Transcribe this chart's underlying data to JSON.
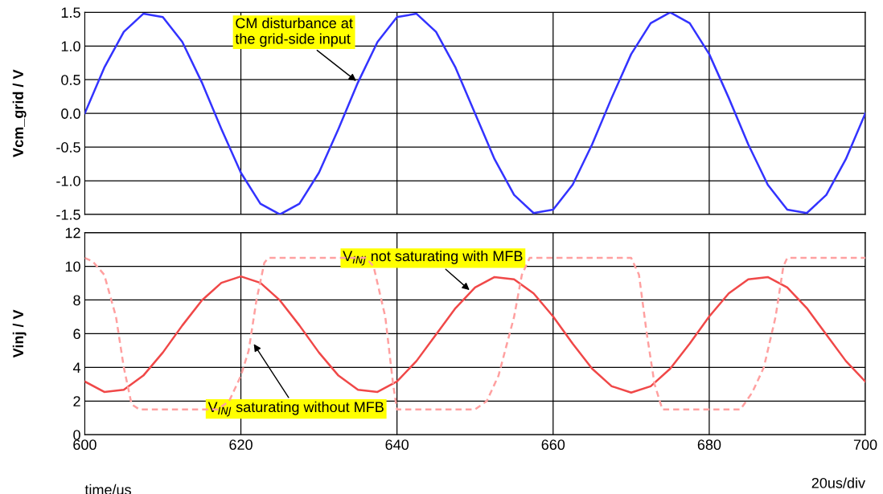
{
  "chart_data": [
    {
      "type": "line",
      "ylabel": "Vcm_grid / V",
      "xlim": [
        600,
        700
      ],
      "xticks": [
        600,
        620,
        640,
        660,
        680,
        700
      ],
      "ylim": [
        -1.5,
        1.5
      ],
      "yticks": [
        {
          "value": -1.5,
          "label": "-1.5"
        },
        {
          "value": -1.0,
          "label": "-1.0"
        },
        {
          "value": -0.5,
          "label": "-0.5"
        },
        {
          "value": 0.0,
          "label": "0.0"
        },
        {
          "value": 0.5,
          "label": "0.5"
        },
        {
          "value": 1.0,
          "label": "1.0"
        },
        {
          "value": 1.5,
          "label": "1.5"
        }
      ],
      "tick_labels": "y",
      "grid": true,
      "legend": false,
      "series": [
        {
          "color": "#3333ff",
          "line_style": "solid",
          "x": [
            600,
            602.5,
            605,
            607.5,
            610,
            612.5,
            615,
            617.5,
            620,
            622.5,
            625,
            627.5,
            630,
            632.5,
            635,
            637.5,
            640,
            642.5,
            645,
            647.5,
            650,
            652.5,
            655,
            657.5,
            660,
            662.5,
            665,
            667.5,
            670,
            672.5,
            675,
            677.5,
            680,
            682.5,
            685,
            687.5,
            690,
            692.5,
            695,
            697.5,
            700
          ],
          "values": [
            0,
            0.68,
            1.21,
            1.48,
            1.43,
            1.06,
            0.46,
            -0.23,
            -0.88,
            -1.34,
            -1.5,
            -1.34,
            -0.88,
            -0.23,
            0.46,
            1.06,
            1.43,
            1.48,
            1.21,
            0.68,
            0,
            -0.68,
            -1.21,
            -1.48,
            -1.43,
            -1.06,
            -0.46,
            0.23,
            0.88,
            1.34,
            1.5,
            1.34,
            0.88,
            0.23,
            -0.46,
            -1.06,
            -1.43,
            -1.48,
            -1.21,
            -0.68,
            0
          ]
        }
      ],
      "annotations": [
        {
          "text": "CM disturbance at\nthe grid-side input",
          "x": 635,
          "y": 0.46
        }
      ]
    },
    {
      "type": "line",
      "ylabel": "Vinj / V",
      "xlabel": "time/us",
      "xlim": [
        600,
        700
      ],
      "xticks": [
        600,
        620,
        640,
        660,
        680,
        700
      ],
      "ylim": [
        0,
        12
      ],
      "yticks": [
        0,
        2,
        4,
        6,
        8,
        10,
        12
      ],
      "grid": true,
      "legend": false,
      "series": [
        {
          "color": "#f04848",
          "line_style": "solid",
          "x": [
            600,
            602.5,
            605,
            607.5,
            610,
            612.5,
            615,
            617.5,
            620,
            622.5,
            625,
            627.5,
            630,
            632.5,
            635,
            637.5,
            640,
            642.5,
            645,
            647.5,
            650,
            652.5,
            655,
            657.5,
            660,
            662.5,
            665,
            667.5,
            670,
            672.5,
            675,
            677.5,
            680,
            682.5,
            685,
            687.5,
            690,
            692.5,
            695,
            697.5,
            700
          ],
          "values": [
            3.16,
            2.54,
            2.67,
            3.51,
            4.88,
            6.49,
            7.98,
            9.02,
            9.4,
            9.02,
            7.98,
            6.49,
            4.88,
            3.51,
            2.67,
            2.54,
            3.16,
            4.38,
            5.95,
            7.52,
            8.74,
            9.36,
            9.23,
            8.39,
            7.02,
            5.41,
            3.92,
            2.88,
            2.5,
            2.88,
            3.92,
            5.41,
            7.02,
            8.39,
            9.23,
            9.36,
            8.74,
            7.52,
            5.95,
            4.38,
            3.16
          ]
        },
        {
          "color": "#ffa0a0",
          "line_style": "dashed",
          "x": [
            600,
            601,
            602.5,
            604,
            605,
            606,
            607,
            617,
            618.5,
            620,
            621,
            622,
            623,
            623.5,
            636,
            637,
            638.5,
            639.5,
            640,
            650,
            651.5,
            653,
            655,
            656,
            657,
            670,
            671,
            672,
            673,
            674,
            684,
            685.5,
            687,
            688.5,
            689.5,
            690,
            700
          ],
          "values": [
            10.5,
            10.3,
            9.5,
            7,
            4,
            1.8,
            1.5,
            1.5,
            2,
            3.5,
            5,
            8,
            10.2,
            10.5,
            10.5,
            10,
            7,
            3,
            1.5,
            1.5,
            2,
            3.5,
            7,
            9.5,
            10.5,
            10.5,
            9.5,
            6,
            3,
            1.5,
            1.5,
            2.5,
            4,
            7,
            10,
            10.5,
            10.5
          ]
        }
      ],
      "annotations": [
        {
          "text": "V$_{INJ}$ not saturating with MFB",
          "x": 649.5,
          "y": 8.5
        },
        {
          "text": "V$_{INJ}$ saturating without MFB",
          "x": 621.5,
          "y": 5.5
        },
        "20us/div"
      ]
    }
  ]
}
